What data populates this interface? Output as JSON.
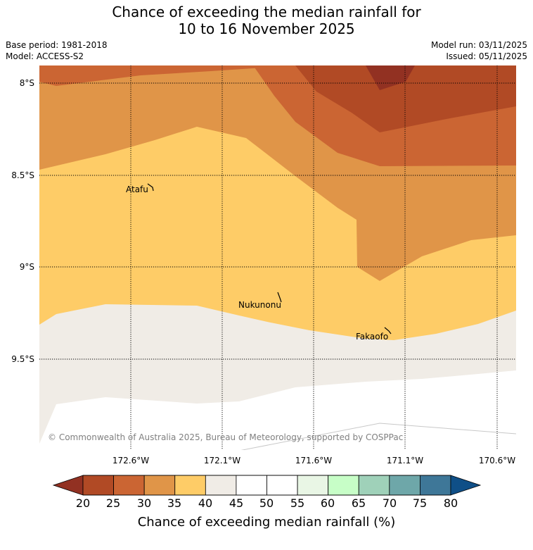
{
  "title": {
    "line1": "Chance of exceeding the median rainfall for",
    "line2": "10 to 16 November 2025"
  },
  "info": {
    "base_period": "Base period: 1981-2018",
    "model": "Model: ACCESS-S2",
    "model_run": "Model run: 03/11/2025",
    "issued": "Issued: 05/11/2025"
  },
  "axes": {
    "lat_labels": [
      "8°S",
      "8.5°S",
      "9°S",
      "9.5°S"
    ],
    "lon_labels": [
      "172.6°W",
      "172.1°W",
      "171.6°W",
      "171.1°W",
      "170.6°W"
    ]
  },
  "places": [
    {
      "name": "Atafu"
    },
    {
      "name": "Nukunonu"
    },
    {
      "name": "Fakaofo"
    }
  ],
  "map_bins": {
    "20-25": "#923122",
    "25-30": "#b14a25",
    "30-35": "#cb6533",
    "35-40": "#e09548",
    "40-45": "#fecc67",
    "45-50": "#f0ece6",
    "50-55": "#ffffff"
  },
  "copyright": "© Commonwealth of Australia 2025, Bureau of Meteorology, supported by COSPPac",
  "colorbar": {
    "title": "Chance of exceeding median rainfall (%)",
    "ticks": [
      "20",
      "25",
      "30",
      "35",
      "40",
      "45",
      "50",
      "55",
      "60",
      "65",
      "70",
      "75",
      "80"
    ],
    "low_extend_color": "#923122",
    "high_extend_color": "#0f4f87",
    "colors": [
      "#b14a25",
      "#cb6533",
      "#e09548",
      "#fecc67",
      "#f0ece6",
      "#ffffff",
      "#ffffff",
      "#e9f6e5",
      "#c7fec7",
      "#9fd1b9",
      "#6ea7a9",
      "#3e7798"
    ]
  }
}
